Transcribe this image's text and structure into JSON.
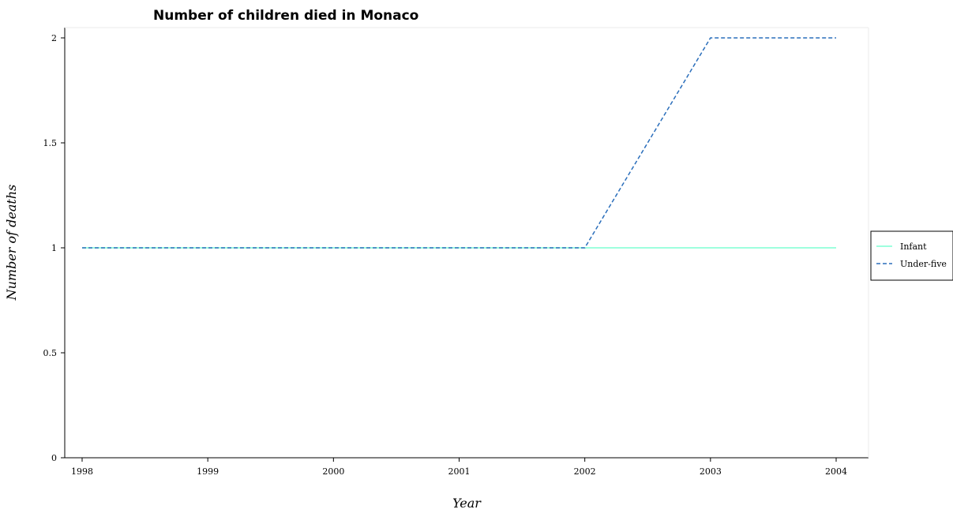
{
  "chart_data": {
    "type": "line",
    "title": "Number of children died in Monaco",
    "xlabel": "Year",
    "ylabel": "Number of deaths",
    "categories": [
      "1998",
      "1999",
      "2000",
      "2001",
      "2002",
      "2003",
      "2004"
    ],
    "ylim": [
      0,
      2
    ],
    "yticks": [
      "0",
      "0.5",
      "1",
      "1.5",
      "2"
    ],
    "ytick_values": [
      0,
      0.5,
      1,
      1.5,
      2
    ],
    "grid": false,
    "legend_position": "right",
    "series": [
      {
        "name": "Infant",
        "values": [
          1,
          1,
          1,
          1,
          1,
          1,
          1
        ],
        "color": "#7fffd4",
        "style": "solid"
      },
      {
        "name": "Under-five",
        "values": [
          1,
          1,
          1,
          1,
          1,
          2,
          2
        ],
        "color": "#2a6ebb",
        "style": "dashed"
      }
    ]
  }
}
